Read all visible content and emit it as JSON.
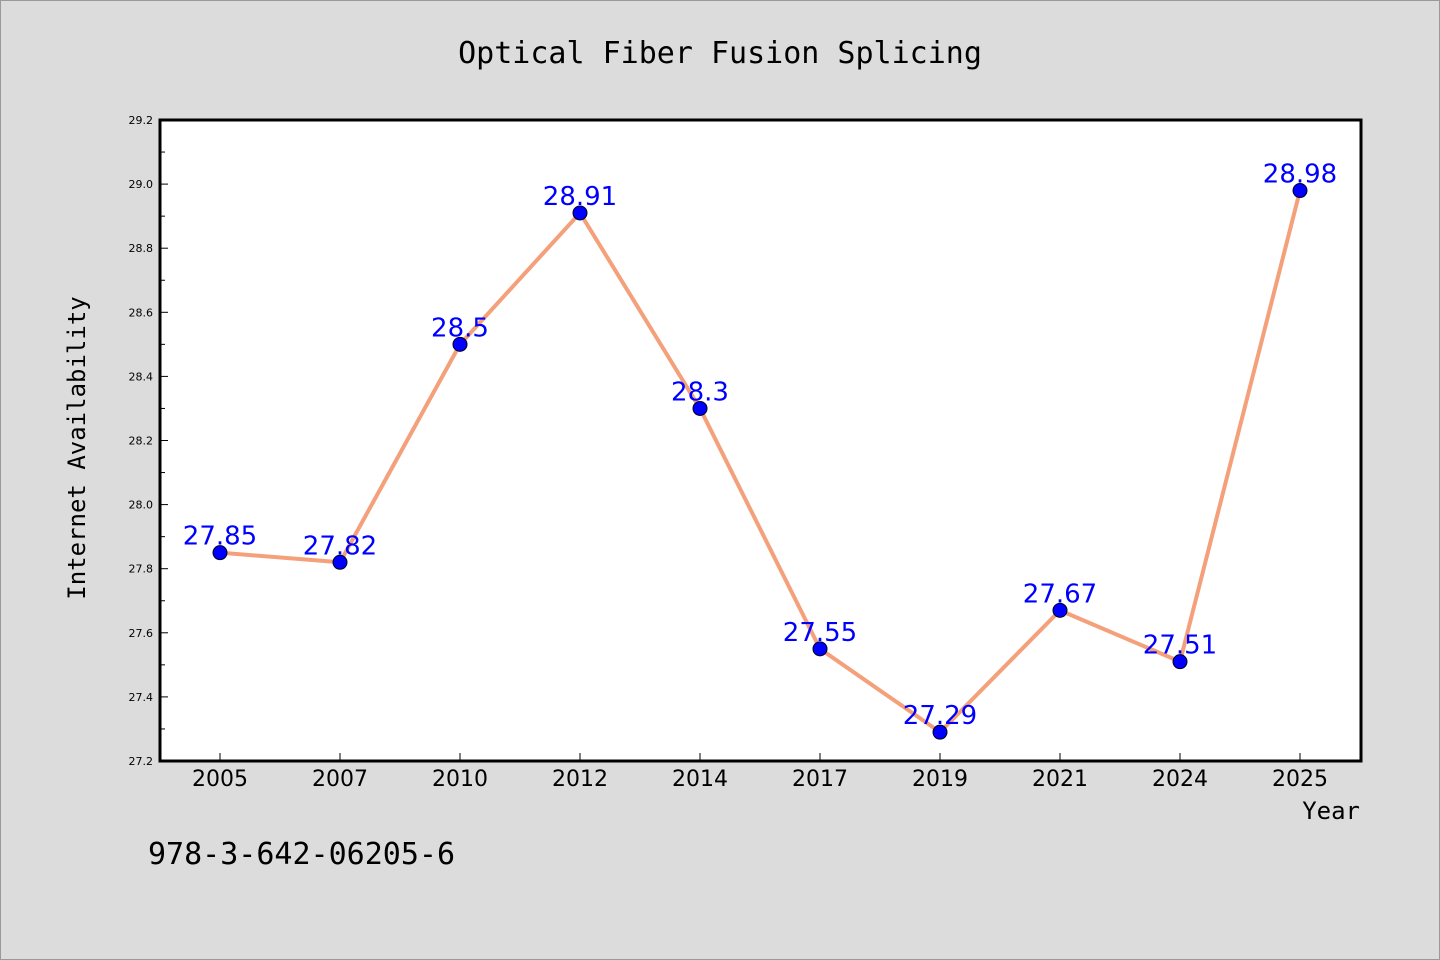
{
  "chart_data": {
    "type": "line",
    "title": "Optical Fiber Fusion Splicing",
    "xlabel": "Year",
    "ylabel": "Internet Availability",
    "categories": [
      "2005",
      "2007",
      "2010",
      "2012",
      "2014",
      "2017",
      "2019",
      "2021",
      "2024",
      "2025"
    ],
    "series": [
      {
        "values": [
          27.85,
          27.82,
          28.5,
          28.91,
          28.3,
          27.55,
          27.29,
          27.67,
          27.51,
          28.98
        ],
        "data_labels": [
          "27.85",
          "27.82",
          "28.5",
          "28.91",
          "28.3",
          "27.55",
          "27.29",
          "27.67",
          "27.51",
          "28.98"
        ]
      }
    ],
    "ylim": [
      27.2,
      29.2
    ],
    "yticks": [
      "27.2",
      "27.4",
      "27.6",
      "27.8",
      "28.0",
      "28.2",
      "28.4",
      "28.6",
      "28.8",
      "29.0",
      "29.2"
    ],
    "grid": false,
    "legend": "none",
    "colors": {
      "line": "#f4a07a",
      "marker": "#0000ff",
      "label": "#0000ff"
    }
  },
  "annotation": {
    "isbn": "978-3-642-06205-6"
  }
}
